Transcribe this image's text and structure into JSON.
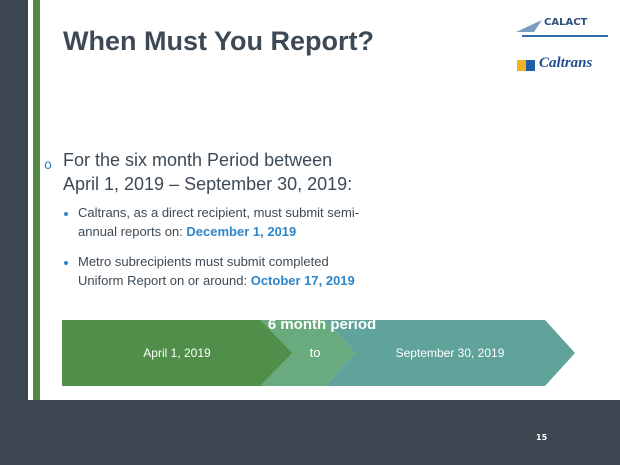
{
  "slide": {
    "title": "When Must You Report?",
    "logos": [
      "CALACT",
      "Caltrans"
    ],
    "main_bullet": {
      "lines": [
        "For the six month Period between",
        "April 1, 2019 – September 30, 2019:"
      ]
    },
    "sub_bullets": [
      {
        "line1": "Caltrans, as a direct recipient, must submit semi-",
        "line2": "annual reports on: ",
        "date": "December 1, 2019"
      },
      {
        "line1": "Metro subrecipients must submit completed",
        "line2": "Uniform Report on or around: ",
        "date": "October 17, 2019"
      }
    ],
    "timeline": {
      "heading": "6 month period",
      "start": "April 1, 2019",
      "middle": "to",
      "end": "September 30, 2019"
    },
    "page_number": "15"
  }
}
